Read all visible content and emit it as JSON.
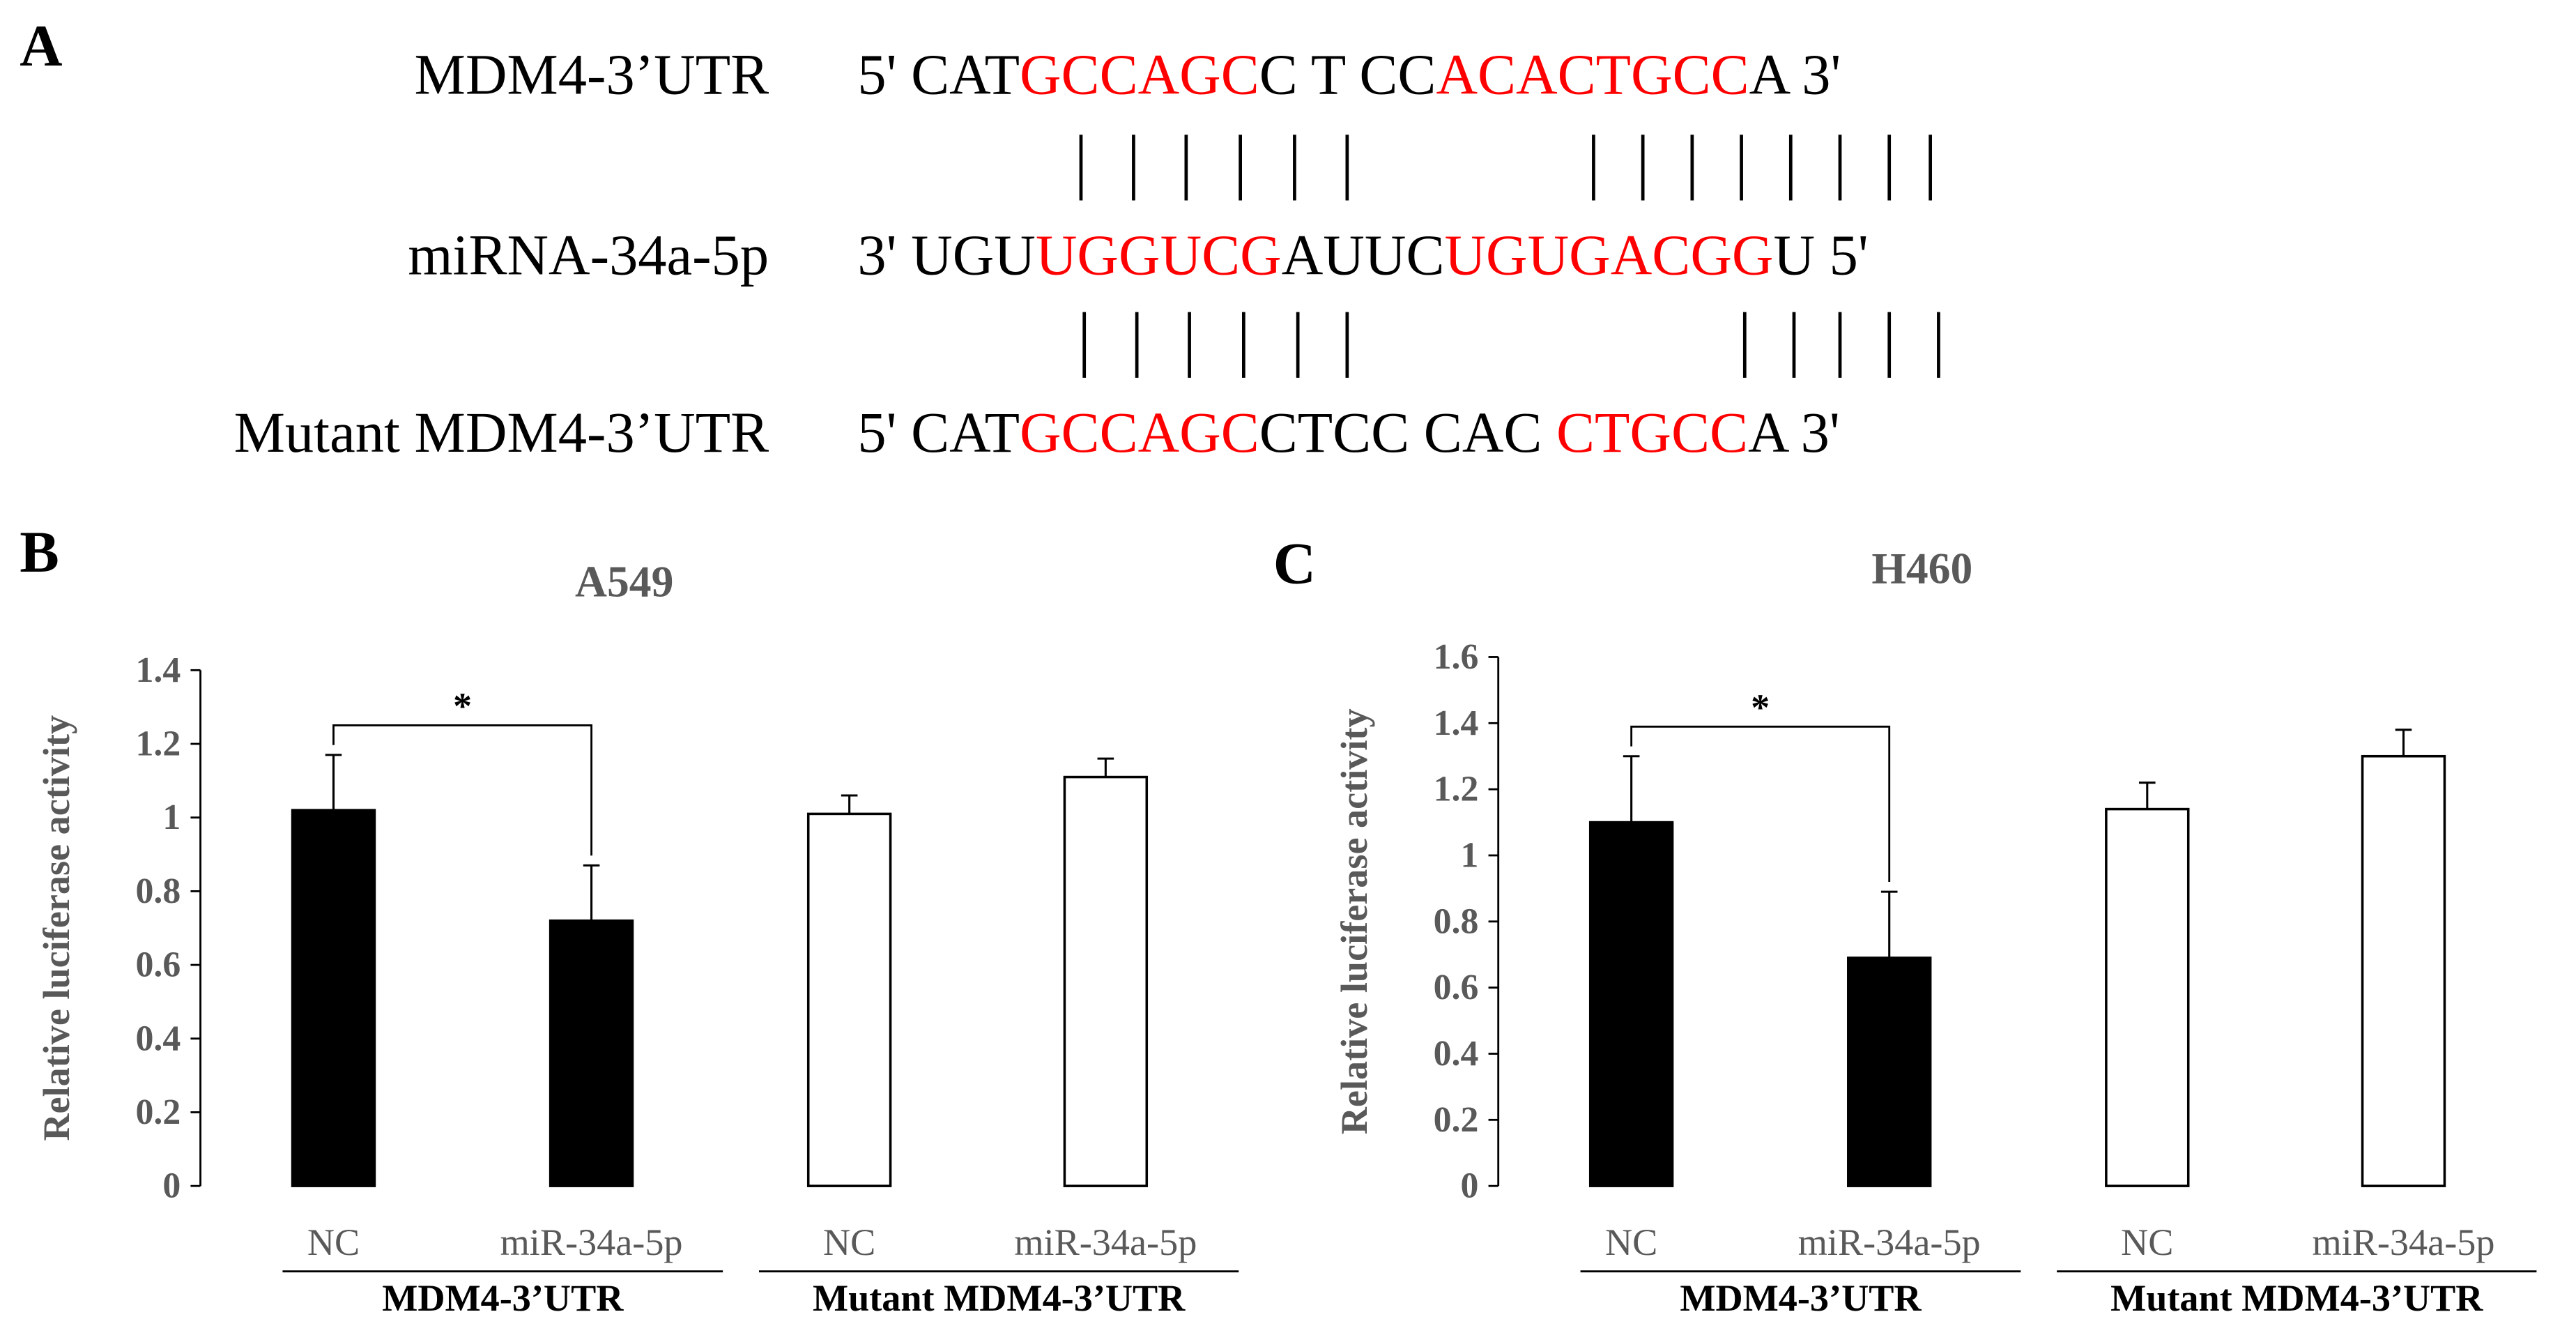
{
  "panel_a": {
    "letter": "A",
    "rows": [
      {
        "label": "MDM4-3’UTR",
        "segments": [
          {
            "text": "5' CAT",
            "color": "#000000"
          },
          {
            "text": "GCCAGC",
            "color": "#ff0000"
          },
          {
            "text": "C T CC",
            "color": "#000000"
          },
          {
            "text": "ACACTGCC",
            "color": "#ff0000"
          },
          {
            "text": "A 3'",
            "color": "#000000"
          }
        ]
      },
      {
        "label": "miRNA-34a-5p",
        "segments": [
          {
            "text": "3' UGU",
            "color": "#000000"
          },
          {
            "text": "UGGUCG",
            "color": "#ff0000"
          },
          {
            "text": "AUUC",
            "color": "#000000"
          },
          {
            "text": "UGUGACGG",
            "color": "#ff0000"
          },
          {
            "text": "U 5'",
            "color": "#000000"
          }
        ]
      },
      {
        "label": "Mutant MDM4-3’UTR",
        "segments": [
          {
            "text": "5' CAT",
            "color": "#000000"
          },
          {
            "text": "GCCAGC",
            "color": "#ff0000"
          },
          {
            "text": "CTCC CAC ",
            "color": "#000000"
          },
          {
            "text": "CTGCC",
            "color": "#ff0000"
          },
          {
            "text": "A 3'",
            "color": "#000000"
          }
        ]
      }
    ]
  },
  "chart_data": [
    {
      "type": "bar",
      "panel": "B",
      "title": "A549",
      "y_label": "Relative luciferase activity",
      "categories": [
        "NC",
        "miR-34a-5p",
        "NC",
        "miR-34a-5p"
      ],
      "group_labels": [
        "MDM4-3’UTR",
        "Mutant MDM4-3’UTR"
      ],
      "values": [
        1.02,
        0.72,
        1.01,
        1.11
      ],
      "errors": [
        0.15,
        0.15,
        0.05,
        0.05
      ],
      "colors": [
        "#000000",
        "#000000",
        "#ffffff",
        "#ffffff"
      ],
      "significance": "*",
      "ylim": [
        0,
        1.4
      ],
      "yticks": [
        0,
        0.2,
        0.4,
        0.6,
        0.8,
        1,
        1.2,
        1.4
      ]
    },
    {
      "type": "bar",
      "panel": "C",
      "title": "H460",
      "y_label": "Relative luciferase activity",
      "categories": [
        "NC",
        "miR-34a-5p",
        "NC",
        "miR-34a-5p"
      ],
      "group_labels": [
        "MDM4-3’UTR",
        "Mutant MDM4-3’UTR"
      ],
      "values": [
        1.1,
        0.69,
        1.14,
        1.3
      ],
      "errors": [
        0.2,
        0.2,
        0.08,
        0.08
      ],
      "colors": [
        "#000000",
        "#000000",
        "#ffffff",
        "#ffffff"
      ],
      "significance": "*",
      "ylim": [
        0,
        1.6
      ],
      "yticks": [
        0,
        0.2,
        0.4,
        0.6,
        0.8,
        1,
        1.2,
        1.4,
        1.6
      ]
    }
  ]
}
